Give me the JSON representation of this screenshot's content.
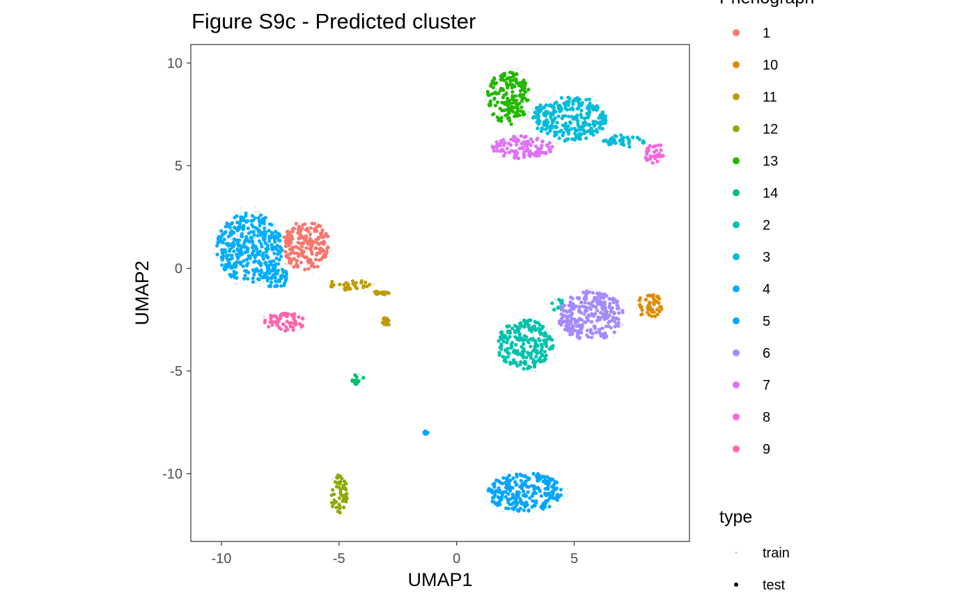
{
  "chart_data": {
    "type": "scatter",
    "title": "Figure S9c - Predicted cluster",
    "xlabel": "UMAP1",
    "ylabel": "UMAP2",
    "xlim": [
      -11.3,
      9.9
    ],
    "ylim": [
      -13.3,
      10.9
    ],
    "x_ticks": [
      -10,
      -5,
      0,
      5
    ],
    "x_tick_labels": [
      "-10",
      "-5",
      "0",
      "5"
    ],
    "y_ticks": [
      10,
      5,
      0,
      -5,
      -10
    ],
    "y_tick_labels": [
      "10",
      "5",
      "0",
      "-5",
      "-10"
    ],
    "grid": false,
    "legend_position": "right",
    "color_legend": {
      "title": "Phenograph",
      "entries": [
        {
          "label": "1",
          "color": "#F8766D"
        },
        {
          "label": "10",
          "color": "#E18A00"
        },
        {
          "label": "11",
          "color": "#BE9C00"
        },
        {
          "label": "12",
          "color": "#8CAB00"
        },
        {
          "label": "13",
          "color": "#24B700"
        },
        {
          "label": "14",
          "color": "#00BE70"
        },
        {
          "label": "2",
          "color": "#00C1AB"
        },
        {
          "label": "3",
          "color": "#00BBDA"
        },
        {
          "label": "4",
          "color": "#00ACFC"
        },
        {
          "label": "5",
          "color": "#00A5FF"
        },
        {
          "label": "6",
          "color": "#A58AFF"
        },
        {
          "label": "7",
          "color": "#DF70F8"
        },
        {
          "label": "8",
          "color": "#F763E0"
        },
        {
          "label": "9",
          "color": "#FF65AC"
        }
      ]
    },
    "shape_legend": {
      "title": "type",
      "entries": [
        {
          "label": "train",
          "style": "small faint point"
        },
        {
          "label": "test",
          "style": "solid point"
        }
      ]
    },
    "series": [
      {
        "cluster": "4",
        "blobs": [
          {
            "cx": -8.8,
            "cy": 1.0,
            "rx": 1.4,
            "ry": 1.7
          },
          {
            "cx": -7.6,
            "cy": -0.5,
            "rx": 0.5,
            "ry": 0.6
          }
        ]
      },
      {
        "cluster": "1",
        "blobs": [
          {
            "cx": -6.4,
            "cy": 1.1,
            "rx": 1.0,
            "ry": 1.2
          }
        ]
      },
      {
        "cluster": "9",
        "blobs": [
          {
            "cx": -7.3,
            "cy": -2.6,
            "rx": 0.9,
            "ry": 0.45
          }
        ]
      },
      {
        "cluster": "11",
        "blobs": [
          {
            "cx": -4.6,
            "cy": -0.8,
            "rx": 0.9,
            "ry": 0.25
          },
          {
            "cx": -3.3,
            "cy": -1.2,
            "rx": 0.5,
            "ry": 0.1
          },
          {
            "cx": -3.0,
            "cy": -2.6,
            "rx": 0.15,
            "ry": 0.25
          }
        ]
      },
      {
        "cluster": "14",
        "blobs": [
          {
            "cx": -4.2,
            "cy": -5.4,
            "rx": 0.25,
            "ry": 0.25
          }
        ]
      },
      {
        "cluster": "12",
        "blobs": [
          {
            "cx": -5.0,
            "cy": -11.0,
            "rx": 0.35,
            "ry": 0.95
          }
        ]
      },
      {
        "cluster": "13",
        "blobs": [
          {
            "cx": 2.2,
            "cy": 8.3,
            "rx": 0.9,
            "ry": 1.3
          }
        ]
      },
      {
        "cluster": "3",
        "blobs": [
          {
            "cx": 4.8,
            "cy": 7.3,
            "rx": 1.6,
            "ry": 1.1
          },
          {
            "cx": 7.1,
            "cy": 6.2,
            "rx": 0.9,
            "ry": 0.3
          }
        ]
      },
      {
        "cluster": "7",
        "blobs": [
          {
            "cx": 2.8,
            "cy": 5.9,
            "rx": 1.3,
            "ry": 0.55
          }
        ]
      },
      {
        "cluster": "8",
        "blobs": [
          {
            "cx": 8.4,
            "cy": 5.6,
            "rx": 0.4,
            "ry": 0.55
          }
        ]
      },
      {
        "cluster": "2",
        "blobs": [
          {
            "cx": 2.9,
            "cy": -3.7,
            "rx": 1.2,
            "ry": 1.2
          },
          {
            "cx": 4.3,
            "cy": -1.8,
            "rx": 0.3,
            "ry": 0.3
          }
        ]
      },
      {
        "cluster": "6",
        "blobs": [
          {
            "cx": 5.7,
            "cy": -2.3,
            "rx": 1.4,
            "ry": 1.2
          }
        ]
      },
      {
        "cluster": "10",
        "blobs": [
          {
            "cx": 8.2,
            "cy": -1.8,
            "rx": 0.55,
            "ry": 0.6
          }
        ]
      },
      {
        "cluster": "5",
        "blobs": [
          {
            "cx": 2.9,
            "cy": -10.9,
            "rx": 1.6,
            "ry": 0.95
          },
          {
            "cx": -1.3,
            "cy": -8.0,
            "rx": 0.08,
            "ry": 0.08
          }
        ]
      }
    ]
  }
}
